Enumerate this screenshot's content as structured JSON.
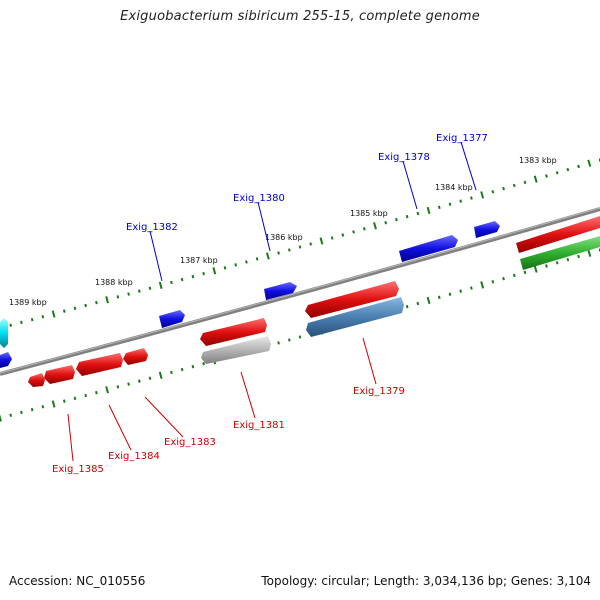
{
  "title": "Exiguobacterium sibiricum 255-15, complete genome",
  "footer": {
    "accession": "Accession: NC_010556",
    "info": "Topology: circular; Length: 3,034,136 bp; Genes: 3,104"
  },
  "colors": {
    "forward_label": "#0000cc",
    "reverse_label": "#cc0000",
    "backbone": "#808080",
    "ruler_dots": "#1a7a1a",
    "gene_blue": "#1010e0",
    "gene_red": "#e01010",
    "gene_gray": "#b0b0b0",
    "gene_steel": "#4a7fb0",
    "gene_green": "#30b030",
    "gene_cyan": "#00e0f0"
  },
  "scale_labels": {
    "forward": [
      "1383 kbp",
      "1384 kbp",
      "1385 kbp",
      "1386 kbp",
      "1387 kbp",
      "1388 kbp",
      "1389 kbp"
    ]
  },
  "gene_labels": {
    "forward": [
      "Exig_1377",
      "Exig_1378",
      "Exig_1380",
      "Exig_1382"
    ],
    "reverse": [
      "Exig_1379",
      "Exig_1381",
      "Exig_1383",
      "Exig_1384",
      "Exig_1385"
    ]
  }
}
